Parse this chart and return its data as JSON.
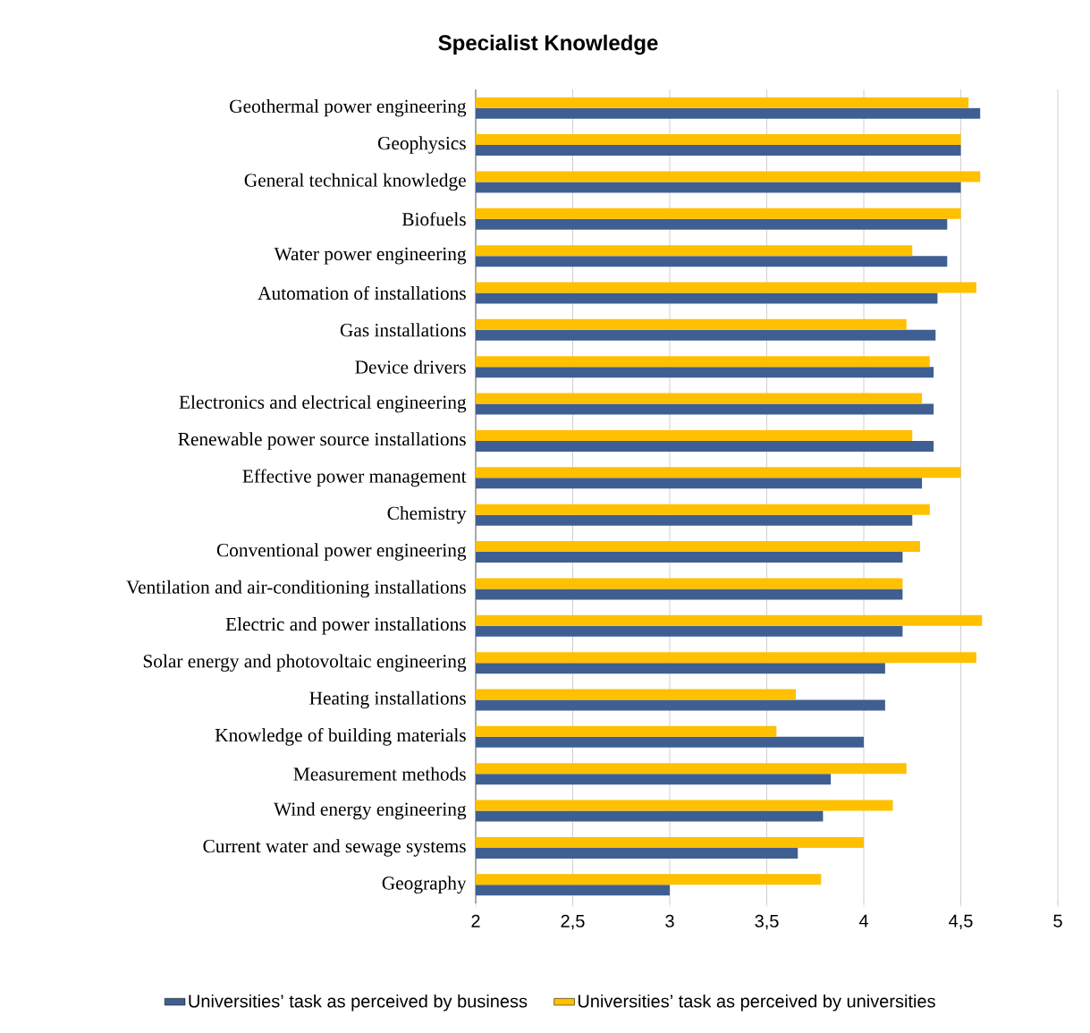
{
  "chart_data": {
    "type": "bar",
    "orientation": "horizontal",
    "title": "Specialist Knowledge",
    "categories": [
      "Geothermal power engineering",
      "Geophysics",
      "General technical knowledge",
      "Biofuels",
      "Water power engineering",
      "Automation of installations",
      "Gas installations",
      "Device drivers",
      "Electronics and electrical engineering",
      "Renewable power source installations",
      "Effective power management",
      "Chemistry",
      "Conventional power engineering",
      "Ventilation and air-conditioning installations",
      "Electric and power installations",
      "Solar energy and photovoltaic engineering",
      "Heating installations",
      "Knowledge of building materials",
      "Measurement methods",
      "Wind energy engineering",
      "Current water and sewage systems",
      "Geography"
    ],
    "series": [
      {
        "name": "Universities’ task as perceived by business",
        "color": "#3f5f93",
        "values": [
          4.6,
          4.5,
          4.5,
          4.43,
          4.43,
          4.38,
          4.37,
          4.36,
          4.36,
          4.36,
          4.3,
          4.25,
          4.2,
          4.2,
          4.2,
          4.11,
          4.11,
          4.0,
          3.83,
          3.79,
          3.66,
          3.0
        ]
      },
      {
        "name": "Universities’ task as perceived by universities",
        "color": "#ffc000",
        "values": [
          4.54,
          4.5,
          4.6,
          4.5,
          4.25,
          4.58,
          4.22,
          4.34,
          4.3,
          4.25,
          4.5,
          4.34,
          4.29,
          4.2,
          4.61,
          4.58,
          3.65,
          3.55,
          4.22,
          4.15,
          4.0,
          3.78
        ]
      }
    ],
    "xlim": [
      2,
      5
    ],
    "xticks": [
      2,
      {
        "value": 2.5,
        "label": "2,5"
      },
      3,
      {
        "value": 3.5,
        "label": "3,5"
      },
      4,
      {
        "value": 4.5,
        "label": "4,5"
      },
      5
    ],
    "grid": "x",
    "legend": "bottom"
  }
}
